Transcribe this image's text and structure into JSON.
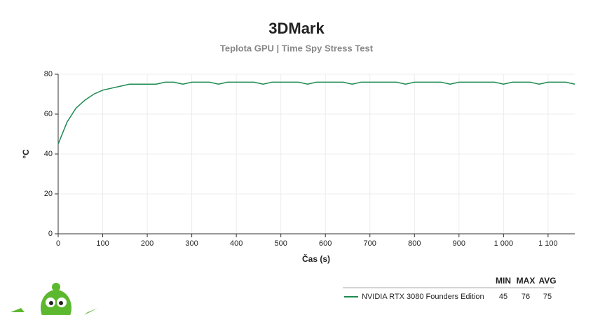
{
  "chart_data": {
    "type": "line",
    "title": "3DMark",
    "subtitle": "Teplota GPU | Time Spy Stress Test",
    "xlabel": "Čas (s)",
    "ylabel": "°C",
    "xlim": [
      0,
      1160
    ],
    "ylim": [
      0,
      80
    ],
    "xticks": [
      0,
      100,
      200,
      300,
      400,
      500,
      600,
      700,
      800,
      900,
      {
        "value": 1000,
        "label": "1 000"
      },
      {
        "value": 1100,
        "label": "1 100"
      }
    ],
    "yticks": [
      0,
      20,
      40,
      60,
      80
    ],
    "grid": true,
    "x": [
      0,
      20,
      40,
      60,
      80,
      100,
      120,
      140,
      160,
      180,
      200,
      220,
      240,
      260,
      280,
      300,
      320,
      340,
      360,
      380,
      400,
      420,
      440,
      460,
      480,
      500,
      520,
      540,
      560,
      580,
      600,
      620,
      640,
      660,
      680,
      700,
      720,
      740,
      760,
      780,
      800,
      820,
      840,
      860,
      880,
      900,
      920,
      940,
      960,
      980,
      1000,
      1020,
      1040,
      1060,
      1080,
      1100,
      1120,
      1140,
      1160
    ],
    "series": [
      {
        "name": "NVIDIA RTX 3080 Founders Edition",
        "color": "#1b8a4f",
        "values": [
          45,
          56,
          63,
          67,
          70,
          72,
          73,
          74,
          75,
          75,
          75,
          75,
          76,
          76,
          75,
          76,
          76,
          76,
          75,
          76,
          76,
          76,
          76,
          75,
          76,
          76,
          76,
          76,
          75,
          76,
          76,
          76,
          76,
          75,
          76,
          76,
          76,
          76,
          76,
          75,
          76,
          76,
          76,
          76,
          75,
          76,
          76,
          76,
          76,
          76,
          75,
          76,
          76,
          76,
          75,
          76,
          76,
          76,
          75
        ],
        "min": 45,
        "max": 76,
        "avg": 75
      }
    ],
    "stat_headers": [
      "MIN",
      "MAX",
      "AVG"
    ]
  }
}
